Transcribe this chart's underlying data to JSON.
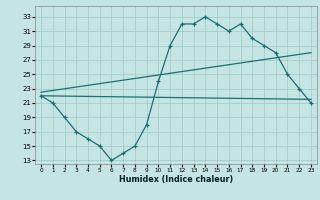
{
  "xlabel": "Humidex (Indice chaleur)",
  "background_color": "#c5e5e5",
  "grid_color": "#a0c8c8",
  "line_color": "#1a7070",
  "xlim": [
    -0.5,
    23.5
  ],
  "ylim": [
    12.5,
    34.5
  ],
  "xticks": [
    0,
    1,
    2,
    3,
    4,
    5,
    6,
    7,
    8,
    9,
    10,
    11,
    12,
    13,
    14,
    15,
    16,
    17,
    18,
    19,
    20,
    21,
    22,
    23
  ],
  "yticks": [
    13,
    15,
    17,
    19,
    21,
    23,
    25,
    27,
    29,
    31,
    33
  ],
  "curve_x": [
    0,
    1,
    2,
    3,
    4,
    5,
    6,
    7,
    8,
    9,
    10,
    11,
    12,
    13,
    14,
    15,
    16,
    17,
    18,
    19,
    20,
    21,
    22,
    23
  ],
  "curve_y": [
    22,
    21,
    19,
    17,
    16,
    15,
    13,
    14,
    15,
    18,
    24,
    29,
    32,
    32,
    33,
    32,
    31,
    32,
    30,
    29,
    28,
    25,
    23,
    21
  ],
  "upper_line_x": [
    0,
    23
  ],
  "upper_line_y": [
    22.5,
    28.0
  ],
  "lower_line_x": [
    0,
    23
  ],
  "lower_line_y": [
    22.0,
    21.5
  ]
}
